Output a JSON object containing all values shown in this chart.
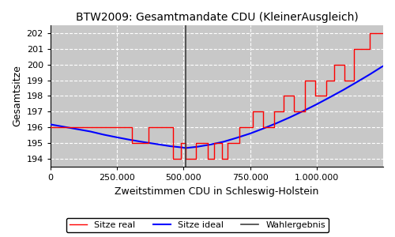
{
  "title": "BTW2009: Gesamtmandate CDU (KleinerAusgleich)",
  "xlabel": "Zweitstimmen CDU in Schleswig-Holstein",
  "ylabel": "Gesamtsitze",
  "wahlergebnis_x": 507000,
  "ylim": [
    193.5,
    202.5
  ],
  "xlim": [
    0,
    1250000
  ],
  "yticks": [
    194,
    195,
    196,
    197,
    198,
    199,
    200,
    201,
    202
  ],
  "xticks": [
    0,
    250000,
    500000,
    750000,
    1000000
  ],
  "xtick_labels": [
    "0",
    "250.000",
    "500.000",
    "750.000",
    "1.000.000"
  ],
  "bg_color": "#c8c8c8",
  "grid_color": "white",
  "line_real_color": "red",
  "line_ideal_color": "blue",
  "line_wahlergebnis_color": "#404040",
  "legend_labels": [
    "Sitze real",
    "Sitze ideal",
    "Wahlergebnis"
  ],
  "ideal_x": [
    0,
    50000,
    100000,
    150000,
    200000,
    250000,
    300000,
    350000,
    400000,
    450000,
    500000,
    507000,
    550000,
    600000,
    650000,
    700000,
    750000,
    800000,
    850000,
    900000,
    950000,
    1000000,
    1050000,
    1100000,
    1150000,
    1200000,
    1250000
  ],
  "ideal_y": [
    196.2,
    196.05,
    195.9,
    195.75,
    195.55,
    195.38,
    195.22,
    195.08,
    194.95,
    194.82,
    194.73,
    194.7,
    194.78,
    194.92,
    195.1,
    195.35,
    195.62,
    195.94,
    196.28,
    196.65,
    197.05,
    197.47,
    197.92,
    198.38,
    198.87,
    199.37,
    199.9
  ],
  "real_x": [
    0,
    305000,
    305000,
    370000,
    370000,
    462000,
    462000,
    490000,
    490000,
    507000,
    507000,
    548000,
    548000,
    590000,
    590000,
    615000,
    615000,
    645000,
    645000,
    665000,
    665000,
    710000,
    710000,
    760000,
    760000,
    800000,
    800000,
    840000,
    840000,
    875000,
    875000,
    915000,
    915000,
    955000,
    955000,
    995000,
    995000,
    1035000,
    1035000,
    1065000,
    1065000,
    1105000,
    1105000,
    1140000,
    1140000,
    1200000,
    1200000,
    1250000
  ],
  "real_y": [
    196,
    196,
    195,
    195,
    196,
    196,
    194,
    194,
    195,
    195,
    194,
    194,
    195,
    195,
    194,
    194,
    195,
    195,
    194,
    194,
    195,
    195,
    196,
    196,
    197,
    197,
    196,
    196,
    197,
    197,
    198,
    198,
    197,
    197,
    199,
    199,
    198,
    198,
    199,
    199,
    200,
    200,
    199,
    199,
    201,
    201,
    202,
    202
  ]
}
